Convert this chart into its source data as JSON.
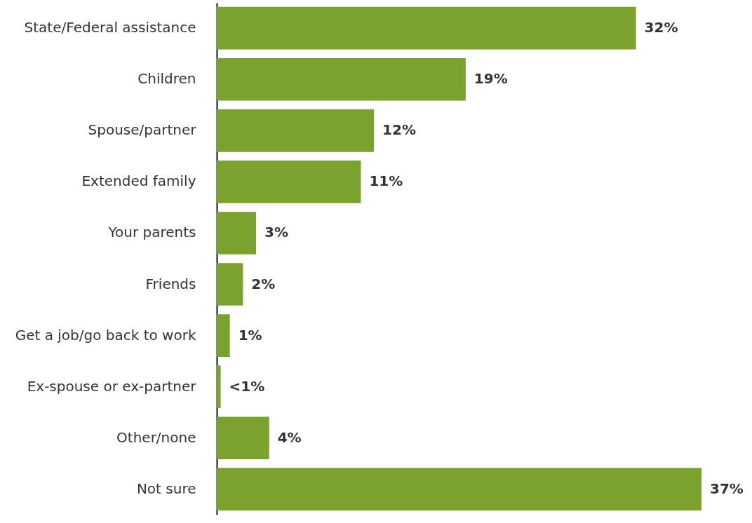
{
  "chart_data": {
    "type": "bar",
    "orientation": "horizontal",
    "categories": [
      "State/Federal assistance",
      "Children",
      "Spouse/partner",
      "Extended family",
      "Your parents",
      "Friends",
      "Get a job/go back to work",
      "Ex-spouse or ex-partner",
      "Other/none",
      "Not sure"
    ],
    "values": [
      32,
      19,
      12,
      11,
      3,
      2,
      1,
      0.3,
      4,
      37
    ],
    "value_labels": [
      "32%",
      "19%",
      "12%",
      "11%",
      "3%",
      "2%",
      "1%",
      "<1%",
      "4%",
      "37%"
    ],
    "color": "#7ba22f"
  }
}
